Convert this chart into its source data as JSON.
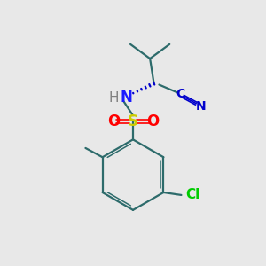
{
  "bg_color": "#e8e8e8",
  "bond_color": "#2d6b6b",
  "N_color": "#1a1aff",
  "O_color": "#ff0000",
  "S_color": "#cccc00",
  "Cl_color": "#00cc00",
  "H_color": "#808080",
  "CN_color": "#0000cc",
  "figsize": [
    3.0,
    3.0
  ],
  "dpi": 100,
  "xlim": [
    0,
    10
  ],
  "ylim": [
    0,
    10
  ]
}
